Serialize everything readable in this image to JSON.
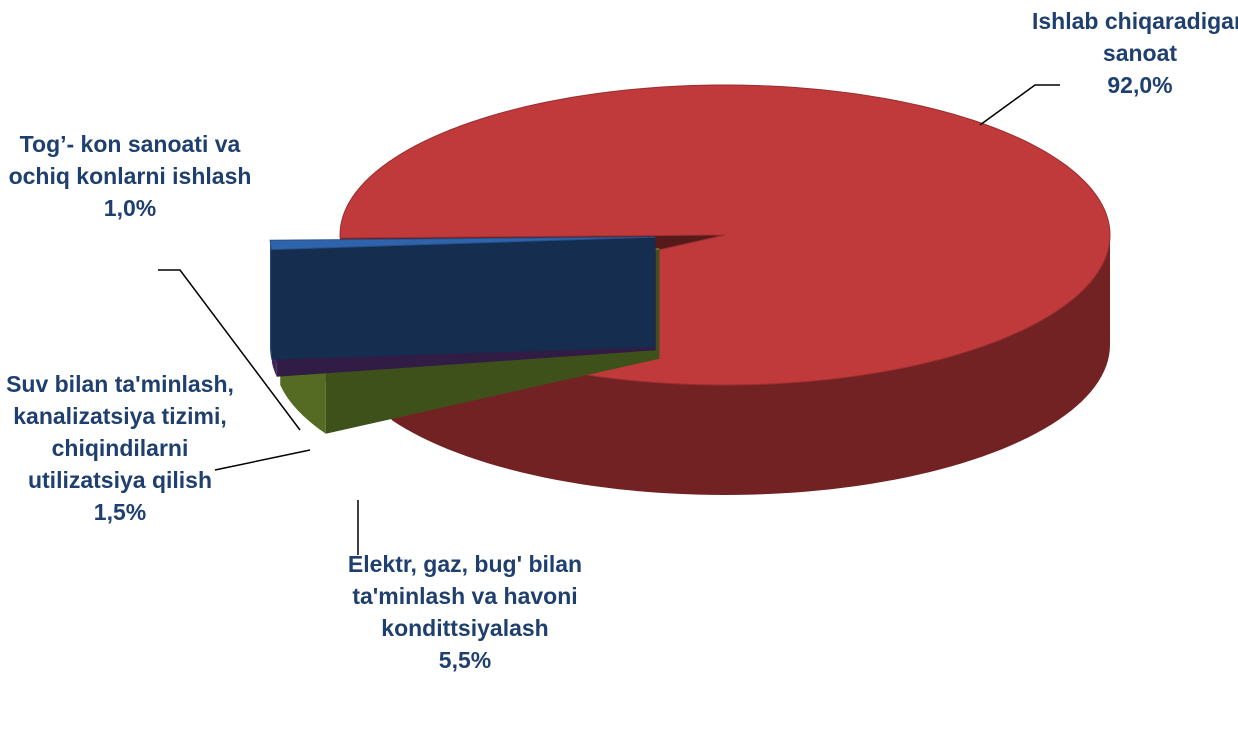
{
  "chart_data": {
    "type": "pie",
    "categories": [
      "Ishlab chiqaradigan sanoat",
      "Elektr, gaz, bug' bilan ta'minlash va havoni kondittsiyalash",
      "Suv bilan ta'minlash, kanalizatsiya tizimi, chiqindilarni utilizatsiya qilish",
      "Tog’- kon sanoati va ochiq konlarni ishlash"
    ],
    "values": [
      92.0,
      5.5,
      1.5,
      1.0
    ],
    "value_labels": [
      "92,0%",
      "5,5%",
      "1,5%",
      "1,0%"
    ],
    "colors": [
      "#c0393b",
      "#8db33a",
      "#6b3f96",
      "#2f64ad"
    ]
  }
}
